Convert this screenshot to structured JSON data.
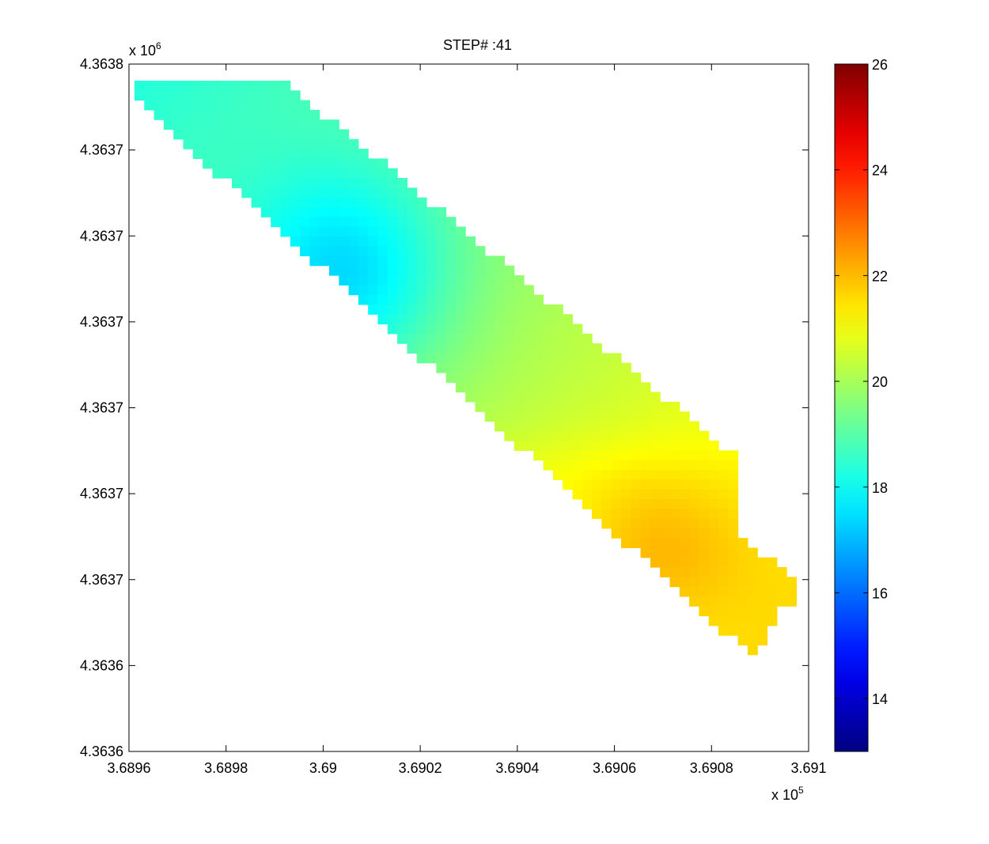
{
  "chart_data": {
    "type": "heatmap",
    "title": "STEP# :41",
    "xlabel": "",
    "ylabel": "",
    "x_multiplier": {
      "base": "x 10",
      "exponent": "5"
    },
    "y_multiplier": {
      "base": "x 10",
      "exponent": "6"
    },
    "xlim": [
      3.6896,
      3.691
    ],
    "ylim": [
      4.3636,
      4.3638
    ],
    "x_ticks": [
      "3.6896",
      "3.6898",
      "3.69",
      "3.6902",
      "3.6904",
      "3.6906",
      "3.6908",
      "3.691"
    ],
    "y_ticks": [
      "4.3638",
      "4.3637",
      "4.3637",
      "4.3637",
      "4.3637",
      "4.3637",
      "4.3637",
      "4.3636",
      "4.3636"
    ],
    "colormap": "jet",
    "clim": [
      13,
      26
    ],
    "colorbar_ticks": [
      "14",
      "16",
      "18",
      "20",
      "22",
      "24",
      "26"
    ],
    "colorbar_tick_values": [
      14,
      16,
      18,
      20,
      22,
      24,
      26
    ],
    "field": {
      "description_of_values": "temperature-like scalar field over a diagonal strip",
      "low_center": {
        "x": 3.69005,
        "y_frac": 0.69,
        "value": 16.0
      },
      "high_center": {
        "x": 3.69068,
        "y_frac": 0.3,
        "value": 22.6
      },
      "upper_left_value": 18.3,
      "lower_right_value": 21.6
    }
  }
}
